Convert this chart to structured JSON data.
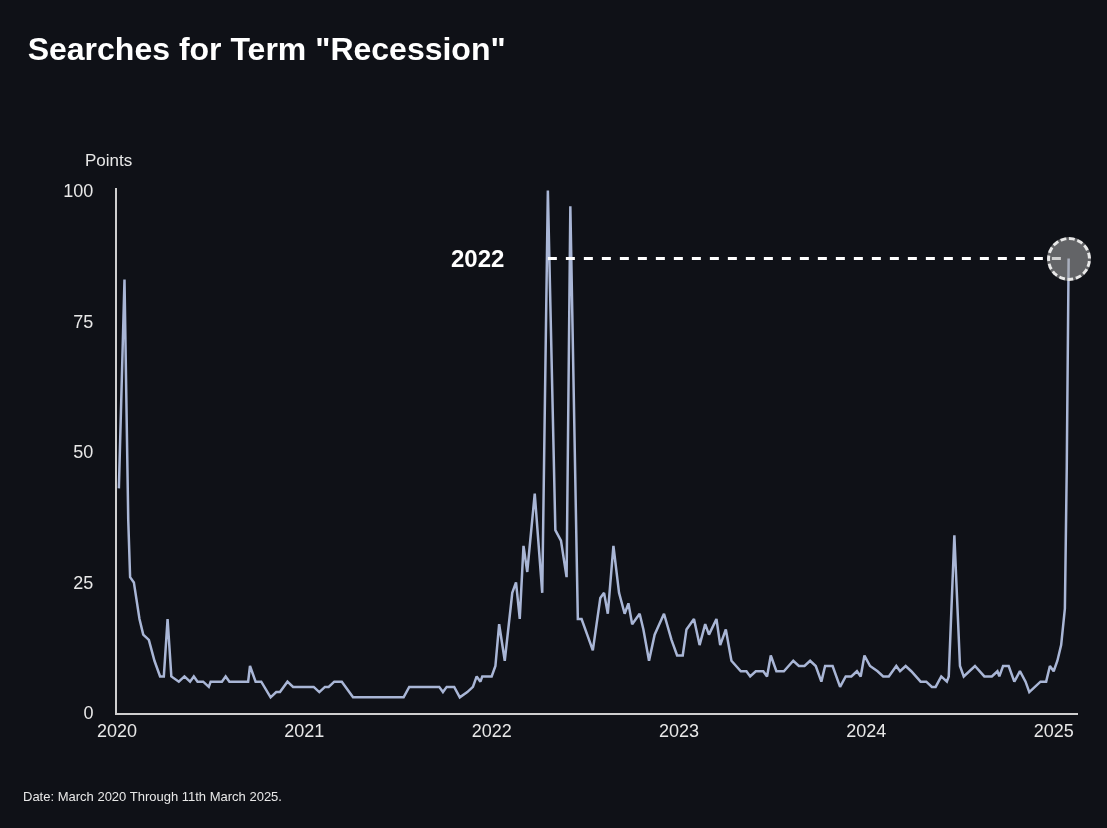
{
  "chart_data": {
    "type": "line",
    "title": "Searches for Term \"Recession\"",
    "ylabel": "Points",
    "annotations": [
      "Date: March 2020 Through 11th March 2025.",
      "2022"
    ],
    "x": [
      2020.01,
      2020.04,
      2020.06,
      2020.07,
      2020.09,
      2020.12,
      2020.14,
      2020.17,
      2020.2,
      2020.23,
      2020.25,
      2020.27,
      2020.29,
      2020.33,
      2020.36,
      2020.39,
      2020.41,
      2020.43,
      2020.46,
      2020.49,
      2020.5,
      2020.56,
      2020.58,
      2020.6,
      2020.7,
      2020.71,
      2020.74,
      2020.77,
      2020.82,
      2020.85,
      2020.87,
      2020.91,
      2020.94,
      2021.05,
      2021.08,
      2021.11,
      2021.13,
      2021.16,
      2021.2,
      2021.26,
      2021.53,
      2021.56,
      2021.72,
      2021.74,
      2021.76,
      2021.8,
      2021.83,
      2021.87,
      2021.9,
      2021.92,
      2021.94,
      2021.95,
      2022.0,
      2022.02,
      2022.04,
      2022.07,
      2022.11,
      2022.13,
      2022.15,
      2022.17,
      2022.19,
      2022.23,
      2022.27,
      2022.3,
      2022.34,
      2022.37,
      2022.4,
      2022.42,
      2022.46,
      2022.48,
      2022.51,
      2022.54,
      2022.58,
      2022.6,
      2022.62,
      2022.65,
      2022.68,
      2022.71,
      2022.73,
      2022.75,
      2022.79,
      2022.81,
      2022.84,
      2022.87,
      2022.92,
      2022.96,
      2022.99,
      2023.02,
      2023.04,
      2023.08,
      2023.11,
      2023.14,
      2023.16,
      2023.2,
      2023.22,
      2023.25,
      2023.28,
      2023.33,
      2023.36,
      2023.38,
      2023.41,
      2023.45,
      2023.47,
      2023.49,
      2023.52,
      2023.56,
      2023.61,
      2023.64,
      2023.67,
      2023.7,
      2023.73,
      2023.76,
      2023.78,
      2023.82,
      2023.86,
      2023.89,
      2023.92,
      2023.95,
      2023.97,
      2023.99,
      2024.02,
      2024.06,
      2024.09,
      2024.12,
      2024.16,
      2024.18,
      2024.21,
      2024.24,
      2024.29,
      2024.32,
      2024.35,
      2024.37,
      2024.4,
      2024.43,
      2024.44,
      2024.47,
      2024.5,
      2024.52,
      2024.58,
      2024.63,
      2024.67,
      2024.7,
      2024.71,
      2024.73,
      2024.76,
      2024.79,
      2024.82,
      2024.85,
      2024.87,
      2024.9,
      2024.93,
      2024.96,
      2024.98,
      2025.0,
      2025.02,
      2025.04,
      2025.06,
      2025.07,
      2025.08
    ],
    "series": [
      {
        "color": "#a9b6d6",
        "values": [
          43,
          83,
          37,
          26,
          25,
          18,
          15,
          14,
          10,
          7,
          7,
          18,
          7,
          6,
          7,
          6,
          7,
          6,
          6,
          5,
          6,
          6,
          7,
          6,
          6,
          9,
          6,
          6,
          3,
          4,
          4,
          6,
          5,
          5,
          4,
          5,
          5,
          6,
          6,
          3,
          3,
          5,
          5,
          4,
          5,
          5,
          3,
          4,
          5,
          7,
          6,
          7,
          7,
          9,
          17,
          10,
          23,
          25,
          18,
          32,
          27,
          42,
          23,
          100,
          35,
          33,
          26,
          97,
          18,
          18,
          15,
          12,
          22,
          23,
          19,
          32,
          23,
          19,
          21,
          17,
          19,
          16,
          10,
          15,
          19,
          14,
          11,
          11,
          16,
          18,
          13,
          17,
          15,
          18,
          13,
          16,
          10,
          8,
          8,
          7,
          8,
          8,
          7,
          11,
          8,
          8,
          10,
          9,
          9,
          10,
          9,
          6,
          9,
          9,
          5,
          7,
          7,
          8,
          7,
          11,
          9,
          8,
          7,
          7,
          9,
          8,
          9,
          8,
          6,
          6,
          5,
          5,
          7,
          6,
          7,
          34,
          9,
          7,
          9,
          7,
          7,
          8,
          7,
          9,
          9,
          6,
          8,
          6,
          4,
          5,
          6,
          6,
          9,
          8,
          10,
          13,
          20,
          47,
          87
        ]
      }
    ],
    "xlim": [
      2020,
      2025.13
    ],
    "xticks": [
      2020,
      2021,
      2022,
      2023,
      2024,
      2025
    ],
    "ylim": [
      0,
      100.5
    ],
    "yticks": [
      0,
      25,
      50,
      75,
      100
    ],
    "grid": false,
    "marker": "none",
    "line_style": "solid",
    "ref_lines": [
      {
        "axis": "y",
        "value": 87,
        "color": "#ffffff",
        "line_style": "dashed"
      }
    ]
  }
}
